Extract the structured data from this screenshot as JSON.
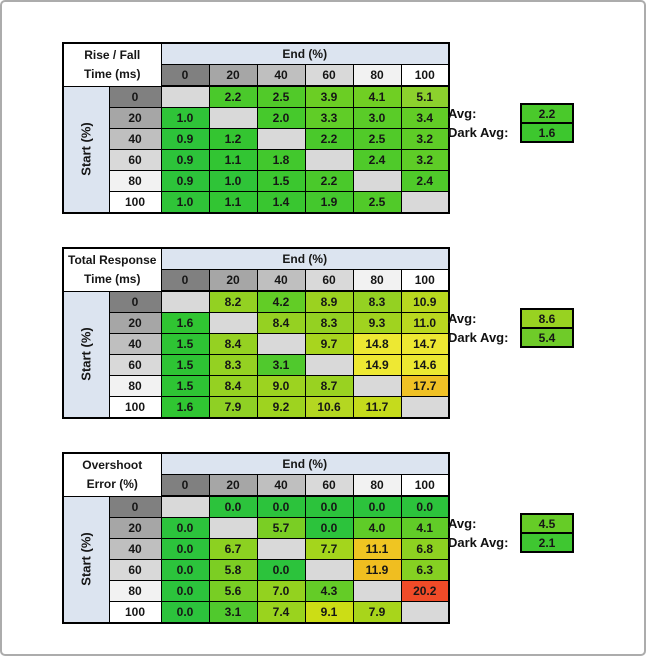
{
  "style": {
    "header_gradient": [
      "#808080",
      "#A6A6A6",
      "#BFBFBF",
      "#D9D9D9",
      "#F2F2F2",
      "#FFFFFF"
    ],
    "axis_band_color": "#DCE4F0",
    "blank_cell_color": "#D9D9D9",
    "grid_border_color": "#000000",
    "frame_color": "#ACACAC",
    "background": "#FFFFFF"
  },
  "chart_data": [
    {
      "type": "heatmap",
      "id": "rise_fall_time",
      "title_line1": "Rise / Fall",
      "title_line2": "Time (ms)",
      "x_axis_label": "End (%)",
      "y_axis_label": "Start (%)",
      "x_categories": [
        "0",
        "20",
        "40",
        "60",
        "80",
        "100"
      ],
      "y_categories": [
        "0",
        "20",
        "40",
        "60",
        "80",
        "100"
      ],
      "values": [
        [
          null,
          "2.2",
          "2.5",
          "3.9",
          "4.1",
          "5.1"
        ],
        [
          "1.0",
          null,
          "2.0",
          "3.3",
          "3.0",
          "3.4"
        ],
        [
          "0.9",
          "1.2",
          null,
          "2.2",
          "2.5",
          "3.2"
        ],
        [
          "0.9",
          "1.1",
          "1.8",
          null,
          "2.4",
          "3.2"
        ],
        [
          "0.9",
          "1.0",
          "1.5",
          "2.2",
          null,
          "2.4"
        ],
        [
          "1.0",
          "1.1",
          "1.4",
          "1.9",
          "2.5",
          null
        ]
      ],
      "cell_colors": [
        [
          null,
          "#4AC92B",
          "#51CA29",
          "#6BCE24",
          "#70CF23",
          "#8CD12D"
        ],
        [
          "#2FC438",
          null,
          "#46C92C",
          "#60CD27",
          "#5ACC28",
          "#62CD26"
        ],
        [
          "#2DC33A",
          "#34C531",
          null,
          "#4AC92B",
          "#51CA29",
          "#5ECC27"
        ],
        [
          "#2DC33A",
          "#32C533",
          "#42C82D",
          null,
          "#4FCA2A",
          "#5ECC27"
        ],
        [
          "#2DC33A",
          "#2FC438",
          "#3BC72F",
          "#4AC92B",
          null,
          "#4FCA2A"
        ],
        [
          "#2FC438",
          "#32C533",
          "#39C630",
          "#44C82D",
          "#51CA29",
          null
        ]
      ],
      "avg": {
        "label": "Avg:",
        "value": "2.2",
        "color": "#4AC92B"
      },
      "dark_avg": {
        "label": "Dark Avg:",
        "value": "1.6",
        "color": "#3DC72E"
      }
    },
    {
      "type": "heatmap",
      "id": "total_response_time",
      "title_line1": "Total Response",
      "title_line2": "Time (ms)",
      "x_axis_label": "End (%)",
      "y_axis_label": "Start (%)",
      "x_categories": [
        "0",
        "20",
        "40",
        "60",
        "80",
        "100"
      ],
      "y_categories": [
        "0",
        "20",
        "40",
        "60",
        "80",
        "100"
      ],
      "values": [
        [
          null,
          "8.2",
          "4.2",
          "8.9",
          "8.3",
          "10.9"
        ],
        [
          "1.6",
          null,
          "8.4",
          "8.3",
          "9.3",
          "11.0"
        ],
        [
          "1.5",
          "8.4",
          null,
          "9.7",
          "14.8",
          "14.7"
        ],
        [
          "1.5",
          "8.3",
          "3.1",
          null,
          "14.9",
          "14.6"
        ],
        [
          "1.5",
          "8.4",
          "9.0",
          "8.7",
          null,
          "17.7"
        ],
        [
          "1.6",
          "7.9",
          "9.2",
          "10.6",
          "11.7",
          null
        ]
      ],
      "cell_colors": [
        [
          null,
          "#93D122",
          "#62CD26",
          "#9BD220",
          "#94D122",
          "#B8D81F"
        ],
        [
          "#30C532",
          null,
          "#95D122",
          "#94D122",
          "#A0D31F",
          "#BAD81F"
        ],
        [
          "#2EC434",
          "#95D122",
          null,
          "#A8D51E",
          "#EDE832",
          "#EDE832"
        ],
        [
          "#2EC434",
          "#94D122",
          "#50C92D",
          null,
          "#EEE833",
          "#ECE831"
        ],
        [
          "#2EC434",
          "#95D122",
          "#9CD320",
          "#99D221",
          null,
          "#F0C125"
        ],
        [
          "#30C532",
          "#8FD024",
          "#9ED31F",
          "#B4D721",
          "#C5DB1C",
          null
        ]
      ],
      "avg": {
        "label": "Avg:",
        "value": "8.6",
        "color": "#98D221"
      },
      "dark_avg": {
        "label": "Dark Avg:",
        "value": "5.4",
        "color": "#6FCB29"
      }
    },
    {
      "type": "heatmap",
      "id": "overshoot_error",
      "title_line1": "Overshoot",
      "title_line2": "Error (%)",
      "x_axis_label": "End (%)",
      "y_axis_label": "Start (%)",
      "x_categories": [
        "0",
        "20",
        "40",
        "60",
        "80",
        "100"
      ],
      "y_categories": [
        "0",
        "20",
        "40",
        "60",
        "80",
        "100"
      ],
      "values": [
        [
          null,
          "0.0",
          "0.0",
          "0.0",
          "0.0",
          "0.0"
        ],
        [
          "0.0",
          null,
          "5.7",
          "0.0",
          "4.0",
          "4.1"
        ],
        [
          "0.0",
          "6.7",
          null,
          "7.7",
          "11.1",
          "6.8"
        ],
        [
          "0.0",
          "5.8",
          "0.0",
          null,
          "11.9",
          "6.3"
        ],
        [
          "0.0",
          "5.6",
          "7.0",
          "4.3",
          null,
          "20.2"
        ],
        [
          "0.0",
          "3.1",
          "7.4",
          "9.1",
          "7.9",
          null
        ]
      ],
      "cell_colors": [
        [
          null,
          "#2CC33C",
          "#2CC33C",
          "#2CC33C",
          "#2CC33C",
          "#2CC33C"
        ],
        [
          "#2CC33C",
          null,
          "#7ACE24",
          "#2CC33C",
          "#5FCC28",
          "#61CC28"
        ],
        [
          "#2CC33C",
          "#8CD121",
          null,
          "#A4D51C",
          "#EFC522",
          "#8DD121"
        ],
        [
          "#2CC33C",
          "#7CCE23",
          "#2CC33C",
          null,
          "#F0BE20",
          "#85D022"
        ],
        [
          "#2CC33C",
          "#78CE24",
          "#93D21F",
          "#64CC27",
          null,
          "#F04B28"
        ],
        [
          "#2CC33C",
          "#50C92D",
          "#9AD31E",
          "#CCDD15",
          "#A8D51B",
          null
        ]
      ],
      "avg": {
        "label": "Avg:",
        "value": "4.5",
        "color": "#66CC27"
      },
      "dark_avg": {
        "label": "Dark Avg:",
        "value": "2.1",
        "color": "#3FC731"
      }
    }
  ]
}
